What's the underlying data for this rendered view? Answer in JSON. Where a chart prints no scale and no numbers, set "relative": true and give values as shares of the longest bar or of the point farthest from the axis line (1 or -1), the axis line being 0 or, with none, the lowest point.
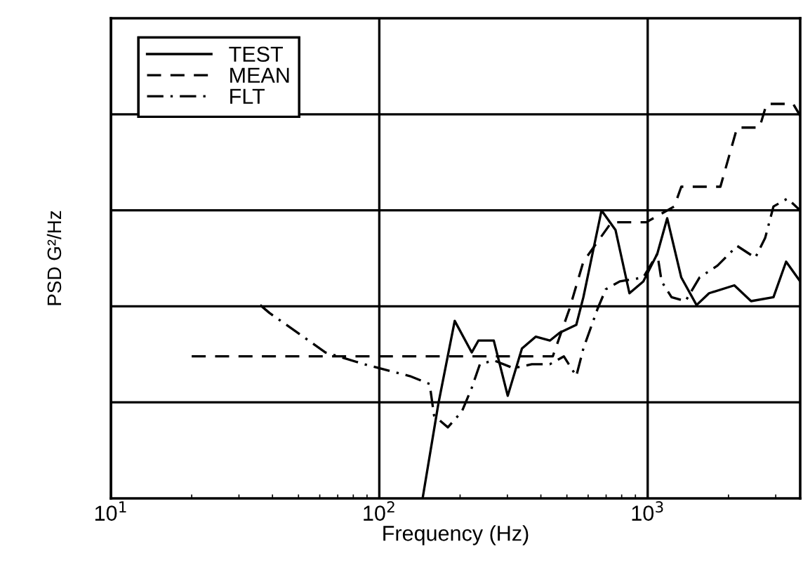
{
  "chart_data": {
    "type": "line",
    "xlabel": "Frequency (Hz)",
    "ylabel": "PSD G²/Hz",
    "log": "x",
    "relative": true,
    "xlim": [
      10,
      3700
    ],
    "xticks": [
      {
        "value": 10,
        "label": "10$^{1}$"
      },
      {
        "value": 100,
        "label": "10$^{2}$"
      },
      {
        "value": 1000,
        "label": "10$^{3}$"
      }
    ],
    "grid": true,
    "legend": "top left",
    "series": [
      {
        "name": "TEST",
        "color": "#000000",
        "line_style": "solid",
        "x": [
          145,
          166,
          191,
          221,
          234,
          267,
          301,
          340,
          383,
          432,
          470,
          542,
          576,
          673,
          759,
          855,
          963,
          1086,
          1182,
          1334,
          1521,
          1693,
          2103,
          2428,
          2942,
          3279,
          3700
        ],
        "values": [
          0,
          0.24,
          0.45,
          0.37,
          0.4,
          0.4,
          0.26,
          0.38,
          0.41,
          0.4,
          0.42,
          0.44,
          0.51,
          0.73,
          0.68,
          0.52,
          0.55,
          0.62,
          0.71,
          0.56,
          0.49,
          0.52,
          0.54,
          0.5,
          0.51,
          0.6,
          0.55
        ]
      },
      {
        "name": "MEAN",
        "color": "#000000",
        "line_style": "dashed",
        "x": [
          20,
          443,
          511,
          576,
          733,
          988,
          1256,
          1334,
          1866,
          2154,
          2611,
          2773,
          3483,
          3700
        ],
        "values": [
          0.36,
          0.36,
          0.48,
          0.6,
          0.7,
          0.7,
          0.74,
          0.79,
          0.79,
          0.94,
          0.94,
          1.0,
          1.0,
          0.97
        ]
      },
      {
        "name": "FLT",
        "color": "#000000",
        "line_style": "dashdot",
        "x": [
          36,
          39,
          52,
          63,
          88,
          130,
          154,
          160,
          180,
          203,
          221,
          237,
          267,
          316,
          370,
          432,
          487,
          542,
          576,
          650,
          698,
          787,
          963,
          1086,
          1127,
          1227,
          1383,
          1560,
          1820,
          2154,
          2517,
          2739,
          2942,
          3318,
          3700
        ],
        "values": [
          0.49,
          0.47,
          0.41,
          0.37,
          0.34,
          0.31,
          0.29,
          0.21,
          0.18,
          0.22,
          0.28,
          0.34,
          0.35,
          0.33,
          0.34,
          0.34,
          0.36,
          0.31,
          0.38,
          0.48,
          0.53,
          0.55,
          0.56,
          0.62,
          0.55,
          0.51,
          0.5,
          0.56,
          0.59,
          0.64,
          0.61,
          0.66,
          0.74,
          0.76,
          0.73
        ]
      }
    ]
  }
}
